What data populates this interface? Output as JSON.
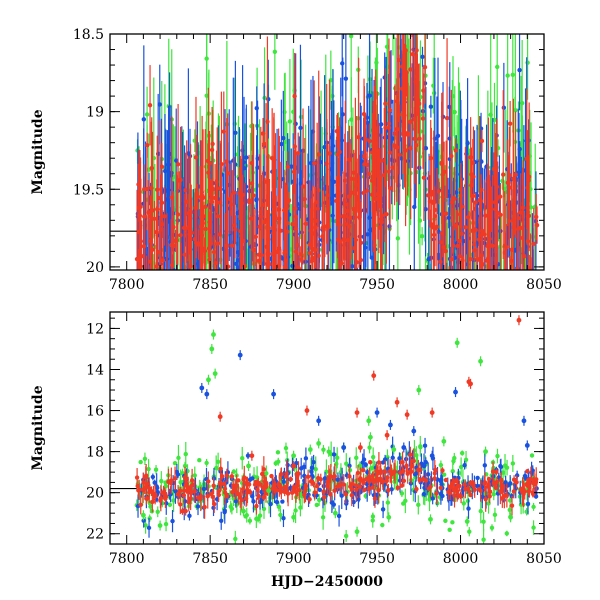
{
  "colors": {
    "green": "#3ee63e",
    "blue": "#1a52e0",
    "red": "#f03a26",
    "axis": "#000000"
  },
  "chart_data": [
    {
      "type": "scatter",
      "subtype": "lightcurve-with-errorbars",
      "title": "",
      "xlabel": "",
      "ylabel": "Magnitude",
      "xlim": [
        7790,
        8050
      ],
      "ylim": [
        20.02,
        18.5
      ],
      "y_inverted": true,
      "xticks": [
        7800,
        7850,
        7900,
        7950,
        8000,
        8050
      ],
      "yticks": [
        18.5,
        19,
        19.5,
        20
      ],
      "ytick_labels": [
        "18.5",
        "19",
        "19.5",
        "20"
      ],
      "reference_line": {
        "y": 19.77,
        "x_range": [
          7790,
          7806
        ]
      },
      "observation_window": [
        7806,
        8046
      ],
      "trend_model": [
        [
          7806,
          19.8
        ],
        [
          7930,
          19.65
        ],
        [
          7950,
          19.45
        ],
        [
          7962,
          19.1
        ],
        [
          7970,
          18.8
        ],
        [
          7976,
          19.05
        ],
        [
          7982,
          19.6
        ],
        [
          7995,
          19.72
        ],
        [
          8046,
          19.7
        ]
      ],
      "series": [
        {
          "color": "green",
          "point_count": 430,
          "scatter": 0.45
        },
        {
          "color": "blue",
          "point_count": 470,
          "scatter": 0.35
        },
        {
          "color": "red",
          "point_count": 520,
          "scatter": 0.25
        }
      ],
      "grid": false,
      "legend": "none"
    },
    {
      "type": "scatter",
      "subtype": "lightcurve-with-errorbars",
      "title": "",
      "xlabel": "HJD−2450000",
      "ylabel": "Magnitude",
      "xlim": [
        7790,
        8050
      ],
      "ylim": [
        22.5,
        11.2
      ],
      "y_inverted": true,
      "xticks": [
        7800,
        7850,
        7900,
        7950,
        8000,
        8050
      ],
      "yticks": [
        12,
        14,
        16,
        18,
        20,
        22
      ],
      "ytick_labels": [
        "12",
        "14",
        "16",
        "18",
        "20",
        "22"
      ],
      "reference_line": {
        "y": 19.8,
        "x_range": [
          7790,
          7806
        ]
      },
      "observation_window": [
        7806,
        8046
      ],
      "trend_model": [
        [
          7806,
          19.95
        ],
        [
          7930,
          19.65
        ],
        [
          7950,
          19.4
        ],
        [
          7962,
          19.1
        ],
        [
          7970,
          18.85
        ],
        [
          7976,
          19.05
        ],
        [
          7982,
          19.6
        ],
        [
          7995,
          19.75
        ],
        [
          8046,
          19.7
        ]
      ],
      "series": [
        {
          "color": "green",
          "point_count": 300,
          "scatter": 0.9
        },
        {
          "color": "blue",
          "point_count": 280,
          "scatter": 0.6
        },
        {
          "color": "red",
          "point_count": 320,
          "scatter": 0.35
        }
      ],
      "outliers": [
        {
          "color": "green",
          "points": [
            [
              7852,
              12.3
            ],
            [
              7851,
              13.0
            ],
            [
              7853,
              14.2
            ],
            [
              7873,
              18.7
            ],
            [
              7900,
              18.2
            ],
            [
              7915,
              17.6
            ],
            [
              7930,
              17.8
            ],
            [
              7945,
              16.5
            ],
            [
              7975,
              15.0
            ],
            [
              7990,
              17.5
            ],
            [
              7998,
              12.7
            ],
            [
              8012,
              13.6
            ],
            [
              7938,
              21.9
            ],
            [
              7957,
              21.2
            ],
            [
              7820,
              21.6
            ],
            [
              7810,
              21.1
            ],
            [
              7870,
              20.9
            ],
            [
              7900,
              21.2
            ],
            [
              7925,
              21.0
            ],
            [
              7982,
              21.3
            ],
            [
              8004,
              21.4
            ],
            [
              8030,
              21.2
            ],
            [
              7849,
              14.5
            ],
            [
              7885,
              19.9
            ],
            [
              7910,
              17.9
            ],
            [
              7946,
              17.3
            ],
            [
              7960,
              17.9
            ],
            [
              8015,
              18.0
            ]
          ]
        },
        {
          "color": "blue",
          "points": [
            [
              7845,
              14.9
            ],
            [
              7848,
              15.2
            ],
            [
              7868,
              13.3
            ],
            [
              7888,
              15.2
            ],
            [
              7915,
              16.5
            ],
            [
              7950,
              16.1
            ],
            [
              7958,
              16.7
            ],
            [
              7972,
              17.0
            ],
            [
              7997,
              15.1
            ],
            [
              8038,
              16.5
            ],
            [
              8040,
              17.7
            ],
            [
              7966,
              17.8
            ],
            [
              7983,
              18.2
            ],
            [
              7930,
              17.8
            ]
          ]
        },
        {
          "color": "red",
          "points": [
            [
              7856,
              16.3
            ],
            [
              7908,
              16.0
            ],
            [
              7938,
              16.1
            ],
            [
              7948,
              14.3
            ],
            [
              7956,
              17.2
            ],
            [
              7962,
              15.6
            ],
            [
              7968,
              16.2
            ],
            [
              7983,
              16.1
            ],
            [
              8005,
              14.6
            ],
            [
              8006,
              14.7
            ],
            [
              8035,
              11.6
            ],
            [
              7875,
              18.2
            ],
            [
              7900,
              18.7
            ],
            [
              7940,
              17.8
            ],
            [
              7985,
              18.9
            ]
          ]
        }
      ],
      "grid": false,
      "legend": "none"
    }
  ]
}
